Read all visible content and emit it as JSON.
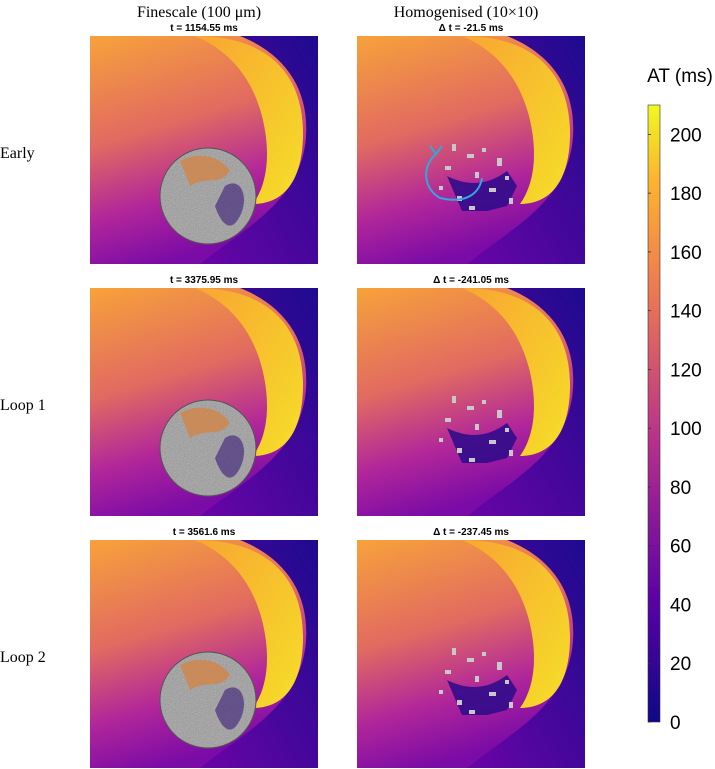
{
  "header": {
    "columns": [
      "Finescale (100 μm)",
      "Homogenised (10×10)"
    ]
  },
  "rows": [
    "Early",
    "Loop 1",
    "Loop 2"
  ],
  "panels": [
    [
      "t = 1154.55 ms",
      "Δ t = -21.5 ms"
    ],
    [
      "t = 3375.95 ms",
      "Δ t = -241.05 ms"
    ],
    [
      "t = 3561.6 ms",
      "Δ t = -237.45 ms"
    ]
  ],
  "colorbar": {
    "label": "AT (ms)",
    "lim": [
      0,
      210
    ],
    "ticks": [
      0,
      20,
      40,
      60,
      80,
      100,
      120,
      140,
      160,
      180,
      200
    ]
  }
}
